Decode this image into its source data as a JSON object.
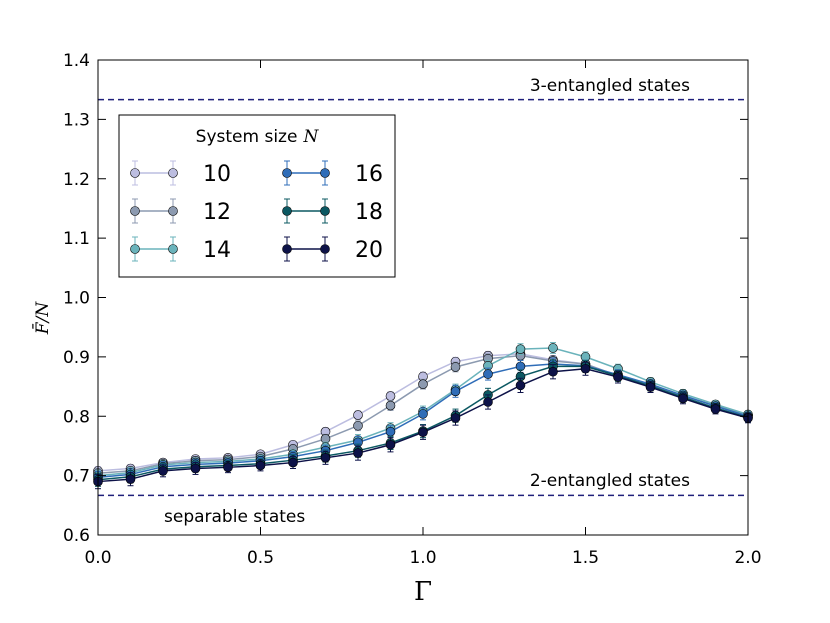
{
  "chart_data": {
    "type": "line",
    "xlabel": "Γ",
    "ylabel": "F̄/N",
    "xlim": [
      0.0,
      2.0
    ],
    "ylim": [
      0.6,
      1.4
    ],
    "x_ticks": [
      "0.0",
      "0.5",
      "1.0",
      "1.5",
      "2.0"
    ],
    "y_ticks": [
      "0.6",
      "0.7",
      "0.8",
      "0.9",
      "1.0",
      "1.1",
      "1.2",
      "1.3",
      "1.4"
    ],
    "x": [
      0.0,
      0.1,
      0.2,
      0.3,
      0.4,
      0.5,
      0.6,
      0.7,
      0.8,
      0.9,
      1.0,
      1.1,
      1.2,
      1.3,
      1.4,
      1.5,
      1.6,
      1.7,
      1.8,
      1.9,
      2.0
    ],
    "legend": {
      "title_prefix": "System size",
      "title_var": "N",
      "location": "upper-left"
    },
    "series": [
      {
        "name": "10",
        "color": "#bcbde0",
        "values": [
          0.708,
          0.712,
          0.722,
          0.728,
          0.73,
          0.736,
          0.752,
          0.774,
          0.802,
          0.834,
          0.867,
          0.892,
          0.902,
          0.905,
          0.895,
          0.888,
          0.868,
          0.852,
          0.834,
          0.818,
          0.802
        ]
      },
      {
        "name": "12",
        "color": "#8c9ab0",
        "values": [
          0.704,
          0.708,
          0.72,
          0.725,
          0.727,
          0.732,
          0.745,
          0.762,
          0.784,
          0.818,
          0.854,
          0.883,
          0.897,
          0.902,
          0.893,
          0.888,
          0.868,
          0.852,
          0.834,
          0.818,
          0.802
        ]
      },
      {
        "name": "14",
        "color": "#6ab3bb",
        "values": [
          0.7,
          0.705,
          0.718,
          0.722,
          0.724,
          0.728,
          0.736,
          0.748,
          0.76,
          0.78,
          0.808,
          0.845,
          0.885,
          0.913,
          0.915,
          0.9,
          0.88,
          0.858,
          0.838,
          0.82,
          0.803
        ]
      },
      {
        "name": "16",
        "color": "#2f6db8",
        "values": [
          0.697,
          0.702,
          0.715,
          0.719,
          0.721,
          0.725,
          0.732,
          0.742,
          0.756,
          0.774,
          0.804,
          0.842,
          0.871,
          0.884,
          0.888,
          0.885,
          0.87,
          0.854,
          0.835,
          0.817,
          0.8
        ]
      },
      {
        "name": "18",
        "color": "#0b5862",
        "values": [
          0.693,
          0.698,
          0.711,
          0.715,
          0.717,
          0.72,
          0.726,
          0.733,
          0.742,
          0.755,
          0.775,
          0.801,
          0.836,
          0.867,
          0.884,
          0.884,
          0.868,
          0.851,
          0.832,
          0.814,
          0.798
        ]
      },
      {
        "name": "20",
        "color": "#0d1248",
        "values": [
          0.69,
          0.694,
          0.708,
          0.712,
          0.714,
          0.717,
          0.722,
          0.73,
          0.738,
          0.752,
          0.773,
          0.797,
          0.824,
          0.852,
          0.875,
          0.88,
          0.866,
          0.849,
          0.83,
          0.812,
          0.797
        ]
      }
    ],
    "reference_lines": [
      {
        "y": 1.3333,
        "label": "3-entangled states",
        "color": "#1f1f7a"
      },
      {
        "y": 0.6667,
        "label": "2-entangled states",
        "color": "#1f1f7a"
      }
    ],
    "annotations": [
      {
        "label": "separable states"
      }
    ]
  }
}
